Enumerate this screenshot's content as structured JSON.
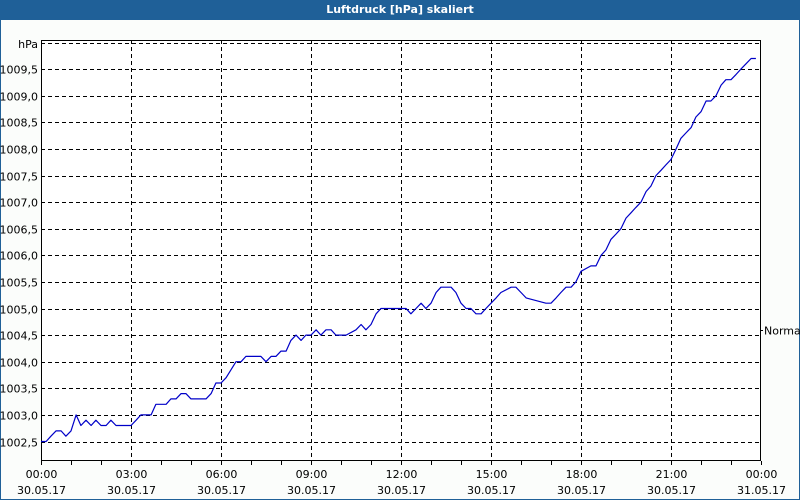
{
  "window": {
    "title": "Luftdruck [hPa] skaliert"
  },
  "colors": {
    "titlebar": "#1f6098",
    "line": "#0000c8",
    "grid": "#000000",
    "background": "#fbfdfb"
  },
  "chart_data": {
    "type": "line",
    "title": "Luftdruck [hPa] skaliert",
    "xlabel": "",
    "ylabel": "hPa",
    "unit_label": "hPa",
    "ylim": [
      1002.2,
      1009.9
    ],
    "yticks": [
      1002.5,
      1003.0,
      1003.5,
      1004.0,
      1004.5,
      1005.0,
      1005.5,
      1006.0,
      1006.5,
      1007.0,
      1007.5,
      1008.0,
      1008.5,
      1009.0,
      1009.5
    ],
    "ytick_labels": [
      "1002,5",
      "1003,0",
      "1003,5",
      "1004,0",
      "1004,5",
      "1005,0",
      "1005,5",
      "1006,0",
      "1006,5",
      "1007,0",
      "1007,5",
      "1008,0",
      "1008,5",
      "1009,0",
      "1009,5"
    ],
    "xlim_hours": [
      0,
      24
    ],
    "xticks": [
      {
        "hour": 0,
        "time": "00:00",
        "date": "30.05.17"
      },
      {
        "hour": 3,
        "time": "03:00",
        "date": "30.05.17"
      },
      {
        "hour": 6,
        "time": "06:00",
        "date": "30.05.17"
      },
      {
        "hour": 9,
        "time": "09:00",
        "date": "30.05.17"
      },
      {
        "hour": 12,
        "time": "12:00",
        "date": "30.05.17"
      },
      {
        "hour": 15,
        "time": "15:00",
        "date": "30.05.17"
      },
      {
        "hour": 18,
        "time": "18:00",
        "date": "30.05.17"
      },
      {
        "hour": 21,
        "time": "21:00",
        "date": "30.05.17"
      },
      {
        "hour": 24,
        "time": "00:00",
        "date": "31.05.17"
      }
    ],
    "grid": true,
    "reference_line": {
      "label": "Normal",
      "value": 1004.6
    },
    "series": [
      {
        "name": "Luftdruck",
        "x_hours": [
          0,
          0.17,
          0.33,
          0.5,
          0.67,
          0.83,
          1.0,
          1.17,
          1.33,
          1.5,
          1.67,
          1.83,
          2.0,
          2.17,
          2.33,
          2.5,
          3.0,
          3.17,
          3.33,
          3.67,
          3.83,
          4.17,
          4.33,
          4.5,
          4.67,
          4.83,
          5.0,
          5.5,
          5.67,
          5.83,
          6.0,
          6.17,
          6.5,
          6.67,
          6.83,
          7.0,
          7.33,
          7.5,
          7.67,
          7.83,
          8.0,
          8.17,
          8.33,
          8.5,
          8.67,
          8.83,
          9.0,
          9.17,
          9.33,
          9.5,
          9.67,
          9.83,
          10.0,
          10.17,
          10.5,
          10.67,
          10.83,
          11.0,
          11.17,
          11.33,
          11.5,
          12.17,
          12.33,
          12.5,
          12.67,
          12.83,
          13.0,
          13.17,
          13.33,
          13.67,
          13.83,
          14.0,
          14.17,
          14.33,
          14.5,
          14.67,
          14.83,
          15.0,
          15.17,
          15.33,
          15.67,
          15.83,
          16.0,
          16.17,
          16.83,
          17.0,
          17.17,
          17.33,
          17.5,
          17.67,
          17.83,
          18.0,
          18.33,
          18.5,
          18.67,
          18.83,
          19.0,
          19.17,
          19.33,
          19.5,
          19.67,
          19.83,
          20.0,
          20.17,
          20.33,
          20.5,
          20.67,
          20.83,
          21.0,
          21.17,
          21.33,
          21.5,
          21.67,
          21.83,
          22.0,
          22.17,
          22.33,
          22.5,
          22.67,
          22.83,
          23.0,
          23.17,
          23.33,
          23.5,
          23.67,
          23.83
        ],
        "values": [
          1002.5,
          1002.5,
          1002.6,
          1002.7,
          1002.7,
          1002.6,
          1002.7,
          1003.0,
          1002.8,
          1002.9,
          1002.8,
          1002.9,
          1002.8,
          1002.8,
          1002.9,
          1002.8,
          1002.8,
          1002.9,
          1003.0,
          1003.0,
          1003.2,
          1003.2,
          1003.3,
          1003.3,
          1003.4,
          1003.4,
          1003.3,
          1003.3,
          1003.4,
          1003.6,
          1003.6,
          1003.7,
          1004.0,
          1004.0,
          1004.1,
          1004.1,
          1004.1,
          1004.0,
          1004.1,
          1004.1,
          1004.2,
          1004.2,
          1004.4,
          1004.5,
          1004.4,
          1004.5,
          1004.5,
          1004.6,
          1004.5,
          1004.6,
          1004.6,
          1004.5,
          1004.5,
          1004.5,
          1004.6,
          1004.7,
          1004.6,
          1004.7,
          1004.9,
          1005.0,
          1005.0,
          1005.0,
          1004.9,
          1005.0,
          1005.1,
          1005.0,
          1005.1,
          1005.3,
          1005.4,
          1005.4,
          1005.3,
          1005.1,
          1005.0,
          1005.0,
          1004.9,
          1004.9,
          1005.0,
          1005.1,
          1005.2,
          1005.3,
          1005.4,
          1005.4,
          1005.3,
          1005.2,
          1005.1,
          1005.1,
          1005.2,
          1005.3,
          1005.4,
          1005.4,
          1005.5,
          1005.7,
          1005.8,
          1005.8,
          1006.0,
          1006.1,
          1006.3,
          1006.4,
          1006.5,
          1006.7,
          1006.8,
          1006.9,
          1007.0,
          1007.2,
          1007.3,
          1007.5,
          1007.6,
          1007.7,
          1007.8,
          1008.0,
          1008.2,
          1008.3,
          1008.4,
          1008.6,
          1008.7,
          1008.9,
          1008.9,
          1009.0,
          1009.2,
          1009.3,
          1009.3,
          1009.4,
          1009.5,
          1009.6,
          1009.7,
          1009.7
        ]
      }
    ]
  }
}
